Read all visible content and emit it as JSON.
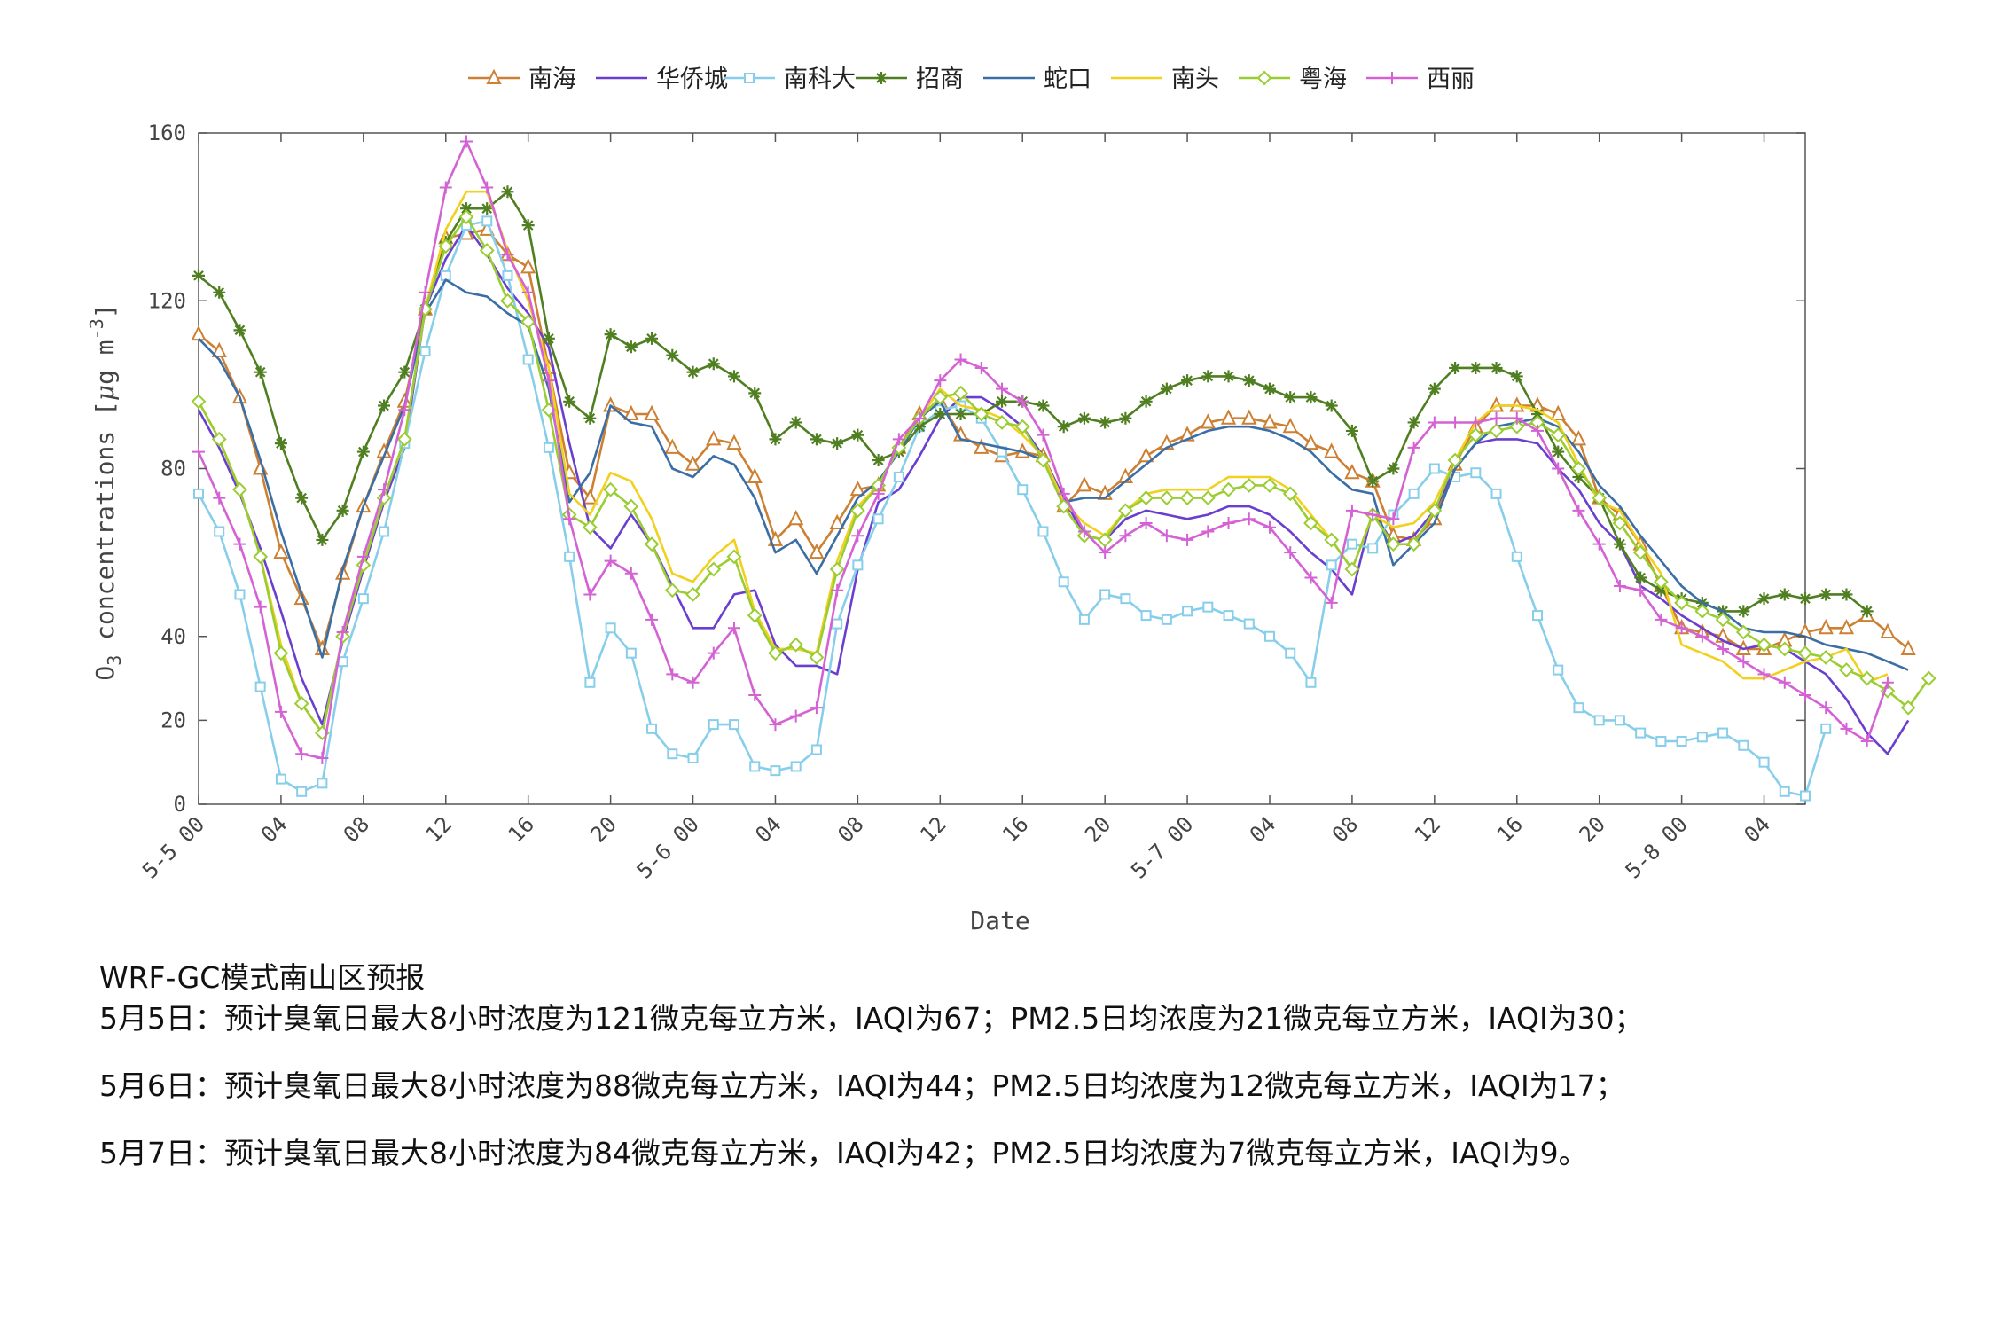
{
  "chart_data": {
    "type": "line",
    "title": "",
    "xlabel": "Date",
    "ylabel_main": "O",
    "ylabel_sub": "3",
    "ylabel_rest": " concentrations [",
    "ylabel_mu": "μ",
    "ylabel_unit": "g m",
    "ylabel_exp": "-3",
    "ylabel_close": "]",
    "ylim": [
      0,
      160
    ],
    "y_ticks": [
      "0",
      "20",
      "40",
      "80",
      "120",
      "160"
    ],
    "y_tick_values": [
      0,
      20,
      40,
      80,
      120,
      160
    ],
    "x_range": [
      0,
      78
    ],
    "x_ticks": [
      {
        "label": "5-5 00",
        "x": 0
      },
      {
        "label": "04",
        "x": 4
      },
      {
        "label": "08",
        "x": 8
      },
      {
        "label": "12",
        "x": 12
      },
      {
        "label": "16",
        "x": 16
      },
      {
        "label": "20",
        "x": 20
      },
      {
        "label": "5-6 00",
        "x": 24
      },
      {
        "label": "04",
        "x": 28
      },
      {
        "label": "08",
        "x": 32
      },
      {
        "label": "12",
        "x": 36
      },
      {
        "label": "16",
        "x": 40
      },
      {
        "label": "20",
        "x": 44
      },
      {
        "label": "5-7 00",
        "x": 48
      },
      {
        "label": "04",
        "x": 52
      },
      {
        "label": "08",
        "x": 56
      },
      {
        "label": "12",
        "x": 60
      },
      {
        "label": "16",
        "x": 64
      },
      {
        "label": "20",
        "x": 68
      },
      {
        "label": "5-8 00",
        "x": 72
      },
      {
        "label": "04",
        "x": 76
      }
    ],
    "legend_position": "top",
    "grid": false,
    "series": [
      {
        "name": "南海",
        "color": "#cd7f32",
        "marker": "triangle",
        "values": [
          112,
          108,
          97,
          80,
          60,
          49,
          37,
          55,
          71,
          84,
          96,
          118,
          135,
          136,
          137,
          131,
          128,
          104,
          79,
          73,
          95,
          93,
          93,
          85,
          81,
          87,
          86,
          78,
          63,
          68,
          60,
          67,
          75,
          76,
          85,
          93,
          96,
          88,
          85,
          83,
          84,
          83,
          71,
          76,
          74,
          78,
          83,
          86,
          88,
          91,
          92,
          92,
          91,
          90,
          86,
          84,
          79,
          77,
          64,
          63,
          68,
          81,
          90,
          95,
          95,
          95,
          93,
          87,
          73,
          69,
          62,
          52,
          42,
          41,
          40,
          37,
          37,
          39,
          41,
          42,
          42,
          45,
          41,
          37
        ]
      },
      {
        "name": "华侨城",
        "color": "#6a3fcf",
        "marker": "none",
        "values": [
          94,
          85,
          74,
          61,
          46,
          30,
          19,
          39,
          56,
          72,
          85,
          118,
          130,
          138,
          131,
          123,
          117,
          109,
          86,
          66,
          61,
          69,
          62,
          52,
          42,
          42,
          50,
          51,
          38,
          33,
          33,
          31,
          56,
          72,
          75,
          83,
          92,
          97,
          97,
          94,
          90,
          83,
          73,
          64,
          63,
          68,
          70,
          69,
          68,
          69,
          71,
          71,
          69,
          65,
          60,
          56,
          50,
          70,
          62,
          64,
          70,
          80,
          86,
          87,
          87,
          86,
          80,
          75,
          67,
          62,
          52,
          49,
          45,
          42,
          39,
          37,
          38,
          37,
          34,
          31,
          25,
          17,
          12,
          20
        ]
      },
      {
        "name": "南科大",
        "color": "#87ceeb",
        "marker": "square",
        "values": [
          74,
          65,
          50,
          28,
          6,
          3,
          5,
          34,
          49,
          65,
          86,
          108,
          126,
          138,
          139,
          126,
          106,
          85,
          59,
          29,
          42,
          36,
          18,
          12,
          11,
          19,
          19,
          9,
          8,
          9,
          13,
          43,
          57,
          68,
          78,
          90,
          94,
          95,
          92,
          84,
          75,
          65,
          53,
          44,
          50,
          49,
          45,
          44,
          46,
          47,
          45,
          43,
          40,
          36,
          29,
          57,
          62,
          61,
          69,
          74,
          80,
          78,
          79,
          74,
          59,
          45,
          32,
          23,
          20,
          20,
          17,
          15,
          15,
          16,
          17,
          14,
          10,
          3,
          2,
          18
        ]
      },
      {
        "name": "招商",
        "color": "#4f7f20",
        "marker": "star",
        "values": [
          126,
          122,
          113,
          103,
          86,
          73,
          63,
          70,
          84,
          95,
          103,
          118,
          134,
          142,
          142,
          146,
          138,
          111,
          96,
          92,
          112,
          109,
          111,
          107,
          103,
          105,
          102,
          98,
          87,
          91,
          87,
          86,
          88,
          82,
          84,
          90,
          93,
          93,
          93,
          96,
          96,
          95,
          90,
          92,
          91,
          92,
          96,
          99,
          101,
          102,
          102,
          101,
          99,
          97,
          97,
          95,
          89,
          77,
          80,
          91,
          99,
          104,
          104,
          104,
          102,
          93,
          84,
          78,
          73,
          62,
          54,
          51,
          49,
          48,
          46,
          46,
          49,
          50,
          49,
          50,
          50,
          46
        ]
      },
      {
        "name": "蛇口",
        "color": "#3a6ea5",
        "marker": "none",
        "values": [
          111,
          106,
          97,
          82,
          65,
          50,
          35,
          56,
          71,
          83,
          95,
          117,
          125,
          122,
          121,
          117,
          114,
          99,
          72,
          79,
          95,
          91,
          90,
          80,
          78,
          83,
          81,
          73,
          60,
          63,
          55,
          64,
          73,
          77,
          84,
          92,
          96,
          87,
          86,
          85,
          84,
          82,
          72,
          73,
          73,
          77,
          81,
          85,
          87,
          89,
          90,
          90,
          89,
          87,
          84,
          79,
          75,
          74,
          57,
          62,
          67,
          80,
          86,
          90,
          91,
          92,
          90,
          84,
          76,
          71,
          64,
          58,
          52,
          48,
          46,
          42,
          41,
          41,
          40,
          38,
          37,
          36,
          34,
          32
        ]
      },
      {
        "name": "南头",
        "color": "#f2d01e",
        "marker": "none",
        "values": [
          96,
          87,
          75,
          59,
          38,
          24,
          17,
          40,
          57,
          73,
          87,
          118,
          137,
          146,
          146,
          132,
          120,
          104,
          74,
          69,
          79,
          77,
          68,
          55,
          53,
          59,
          63,
          46,
          37,
          37,
          36,
          58,
          71,
          76,
          85,
          92,
          99,
          95,
          94,
          92,
          88,
          83,
          72,
          67,
          64,
          70,
          74,
          75,
          75,
          75,
          78,
          78,
          78,
          75,
          69,
          63,
          56,
          69,
          66,
          67,
          72,
          82,
          91,
          95,
          95,
          94,
          91,
          81,
          72,
          70,
          62,
          55,
          38,
          36,
          34,
          30,
          30,
          32,
          34,
          35,
          37,
          29,
          31
        ]
      },
      {
        "name": "粤海",
        "color": "#9acd32",
        "marker": "diamond",
        "values": [
          96,
          87,
          75,
          59,
          36,
          24,
          17,
          40,
          57,
          73,
          87,
          118,
          133,
          140,
          132,
          120,
          115,
          94,
          69,
          66,
          75,
          71,
          62,
          51,
          50,
          56,
          59,
          45,
          36,
          38,
          35,
          56,
          70,
          76,
          85,
          92,
          97,
          98,
          93,
          91,
          90,
          82,
          71,
          64,
          63,
          70,
          73,
          73,
          73,
          73,
          75,
          76,
          76,
          74,
          67,
          63,
          56,
          69,
          62,
          62,
          70,
          82,
          88,
          89,
          90,
          91,
          88,
          80,
          73,
          67,
          60,
          53,
          48,
          46,
          44,
          41,
          38,
          37,
          36,
          35,
          32,
          30,
          27,
          23,
          30
        ]
      },
      {
        "name": "西丽",
        "color": "#d462d4",
        "marker": "plus",
        "values": [
          84,
          73,
          62,
          47,
          22,
          12,
          11,
          41,
          59,
          75,
          94,
          122,
          147,
          158,
          147,
          131,
          122,
          101,
          68,
          50,
          58,
          55,
          44,
          31,
          29,
          36,
          42,
          26,
          19,
          21,
          23,
          51,
          64,
          74,
          87,
          92,
          101,
          106,
          104,
          99,
          96,
          88,
          74,
          65,
          60,
          64,
          67,
          64,
          63,
          65,
          67,
          68,
          66,
          60,
          54,
          48,
          70,
          69,
          68,
          85,
          91,
          91,
          91,
          92,
          92,
          89,
          80,
          70,
          62,
          52,
          51,
          44,
          42,
          40,
          37,
          34,
          31,
          29,
          26,
          23,
          18,
          15,
          29
        ]
      }
    ]
  },
  "notes": {
    "title": "WRF-GC模式南山区预报",
    "day1": "5月5日：预计臭氧日最大8小时浓度为121微克每立方米，IAQI为67；PM2.5日均浓度为21微克每立方米，IAQI为30；",
    "day2": "5月6日：预计臭氧日最大8小时浓度为88微克每立方米，IAQI为44；PM2.5日均浓度为12微克每立方米，IAQI为17；",
    "day3": "5月7日：预计臭氧日最大8小时浓度为84微克每立方米，IAQI为42；PM2.5日均浓度为7微克每立方米，IAQI为9。"
  }
}
